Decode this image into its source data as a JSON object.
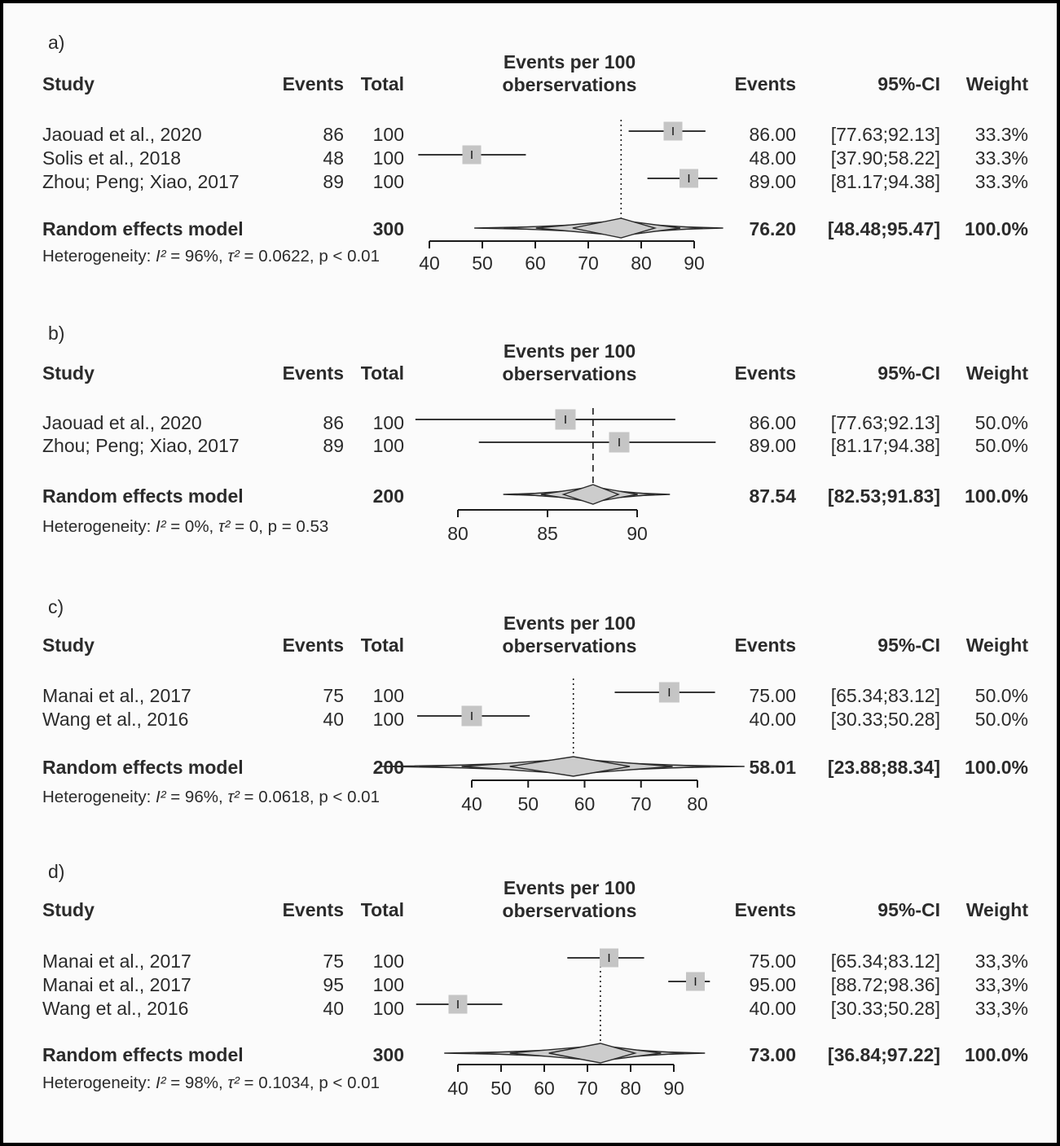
{
  "chart_data": [
    {
      "type": "forest",
      "panel_label": "a)",
      "axis_title_line1": "Events per 100",
      "axis_title_line2": "oberservations",
      "headers": {
        "study": "Study",
        "events": "Events",
        "total": "Total",
        "events_pct": "Events",
        "ci": "95%-CI",
        "weight": "Weight"
      },
      "studies": [
        {
          "study": "Jaouad et al., 2020",
          "events": "86",
          "total": "100",
          "estimate": 86.0,
          "lower": 77.63,
          "upper": 92.13,
          "estimate_text": "86.00",
          "ci_text": "[77.63;92.13]",
          "weight_text": "33.3%",
          "weight_pct": 33.3
        },
        {
          "study": "Solis et al., 2018",
          "events": "48",
          "total": "100",
          "estimate": 48.0,
          "lower": 37.9,
          "upper": 58.22,
          "estimate_text": "48.00",
          "ci_text": "[37.90;58.22]",
          "weight_text": "33.3%",
          "weight_pct": 33.3
        },
        {
          "study": "Zhou; Peng; Xiao, 2017",
          "events": "89",
          "total": "100",
          "estimate": 89.0,
          "lower": 81.17,
          "upper": 94.38,
          "estimate_text": "89.00",
          "ci_text": "[81.17;94.38]",
          "weight_text": "33.3%",
          "weight_pct": 33.3
        }
      ],
      "summary": {
        "label": "Random effects model",
        "total": "300",
        "estimate": 76.2,
        "lower": 48.48,
        "upper": 95.47,
        "estimate_text": "76.20",
        "ci_text": "[48.48;95.47]",
        "weight_text": "100.0%"
      },
      "heterogeneity": {
        "prefix": "Heterogeneity: ",
        "i2": "I²",
        "i2_rest": " = 96%, ",
        "tau2": "τ²",
        "tau2_rest": " = 0.0622, p < 0.01"
      },
      "axis_ticks": [
        40,
        50,
        60,
        70,
        80,
        90
      ],
      "ref_line": 76.2,
      "ref_line_style": "dotted"
    },
    {
      "type": "forest",
      "panel_label": "b)",
      "axis_title_line1": "Events per 100",
      "axis_title_line2": "oberservations",
      "headers": {
        "study": "Study",
        "events": "Events",
        "total": "Total",
        "events_pct": "Events",
        "ci": "95%-CI",
        "weight": "Weight"
      },
      "studies": [
        {
          "study": "Jaouad et al., 2020",
          "events": "86",
          "total": "100",
          "estimate": 86.0,
          "lower": 77.63,
          "upper": 92.13,
          "estimate_text": "86.00",
          "ci_text": "[77.63;92.13]",
          "weight_text": "50.0%",
          "weight_pct": 50.0
        },
        {
          "study": "Zhou; Peng; Xiao, 2017",
          "events": "89",
          "total": "100",
          "estimate": 89.0,
          "lower": 81.17,
          "upper": 94.38,
          "estimate_text": "89.00",
          "ci_text": "[81.17;94.38]",
          "weight_text": "50.0%",
          "weight_pct": 50.0
        }
      ],
      "summary": {
        "label": "Random effects model",
        "total": "200",
        "estimate": 87.54,
        "lower": 82.53,
        "upper": 91.83,
        "estimate_text": "87.54",
        "ci_text": "[82.53;91.83]",
        "weight_text": "100.0%"
      },
      "heterogeneity": {
        "prefix": "Heterogeneity: ",
        "i2": "I²",
        "i2_rest": " = 0%, ",
        "tau2": "τ²",
        "tau2_rest": " = 0, p = 0.53"
      },
      "axis_ticks": [
        80,
        85,
        90
      ],
      "ref_line": 87.54,
      "ref_line_style": "dashed"
    },
    {
      "type": "forest",
      "panel_label": "c)",
      "axis_title_line1": "Events per 100",
      "axis_title_line2": "oberservations",
      "headers": {
        "study": "Study",
        "events": "Events",
        "total": "Total",
        "events_pct": "Events",
        "ci": "95%-CI",
        "weight": "Weight"
      },
      "studies": [
        {
          "study": "Manai et al., 2017",
          "events": "75",
          "total": "100",
          "estimate": 75.0,
          "lower": 65.34,
          "upper": 83.12,
          "estimate_text": "75.00",
          "ci_text": "[65.34;83.12]",
          "weight_text": "50.0%",
          "weight_pct": 50.0
        },
        {
          "study": "Wang et al., 2016",
          "events": "40",
          "total": "100",
          "estimate": 40.0,
          "lower": 30.33,
          "upper": 50.28,
          "estimate_text": "40.00",
          "ci_text": "[30.33;50.28]",
          "weight_text": "50.0%",
          "weight_pct": 50.0
        }
      ],
      "summary": {
        "label": "Random effects model",
        "total": "200",
        "estimate": 58.01,
        "lower": 23.88,
        "upper": 88.34,
        "estimate_text": "58.01",
        "ci_text": "[23.88;88.34]",
        "weight_text": "100.0%"
      },
      "heterogeneity": {
        "prefix": "Heterogeneity: ",
        "i2": "I²",
        "i2_rest": " = 96%, ",
        "tau2": "τ²",
        "tau2_rest": " = 0.0618, p < 0.01"
      },
      "axis_ticks": [
        40,
        50,
        60,
        70,
        80
      ],
      "ref_line": 58.01,
      "ref_line_style": "dotted"
    },
    {
      "type": "forest",
      "panel_label": "d)",
      "axis_title_line1": "Events per 100",
      "axis_title_line2": "oberservations",
      "headers": {
        "study": "Study",
        "events": "Events",
        "total": "Total",
        "events_pct": "Events",
        "ci": "95%-CI",
        "weight": "Weight"
      },
      "studies": [
        {
          "study": "Manai et al., 2017",
          "events": "75",
          "total": "100",
          "estimate": 75.0,
          "lower": 65.34,
          "upper": 83.12,
          "estimate_text": "75.00",
          "ci_text": "[65.34;83.12]",
          "weight_text": "33,3%",
          "weight_pct": 33.3
        },
        {
          "study": "Manai et al., 2017",
          "events": "95",
          "total": "100",
          "estimate": 95.0,
          "lower": 88.72,
          "upper": 98.36,
          "estimate_text": "95.00",
          "ci_text": "[88.72;98.36]",
          "weight_text": "33,3%",
          "weight_pct": 33.3
        },
        {
          "study": "Wang et al., 2016",
          "events": "40",
          "total": "100",
          "estimate": 40.0,
          "lower": 30.33,
          "upper": 50.28,
          "estimate_text": "40.00",
          "ci_text": "[30.33;50.28]",
          "weight_text": "33,3%",
          "weight_pct": 33.3
        }
      ],
      "summary": {
        "label": "Random effects model",
        "total": "300",
        "estimate": 73.0,
        "lower": 36.84,
        "upper": 97.22,
        "estimate_text": "73.00",
        "ci_text": "[36.84;97.22]",
        "weight_text": "100.0%"
      },
      "heterogeneity": {
        "prefix": "Heterogeneity: ",
        "i2": "I²",
        "i2_rest": " = 98%, ",
        "tau2": "τ²",
        "tau2_rest": " = 0.1034, p < 0.01"
      },
      "axis_ticks": [
        40,
        50,
        60,
        70,
        80,
        90
      ],
      "ref_line": 73.0,
      "ref_line_style": "dotted"
    }
  ]
}
